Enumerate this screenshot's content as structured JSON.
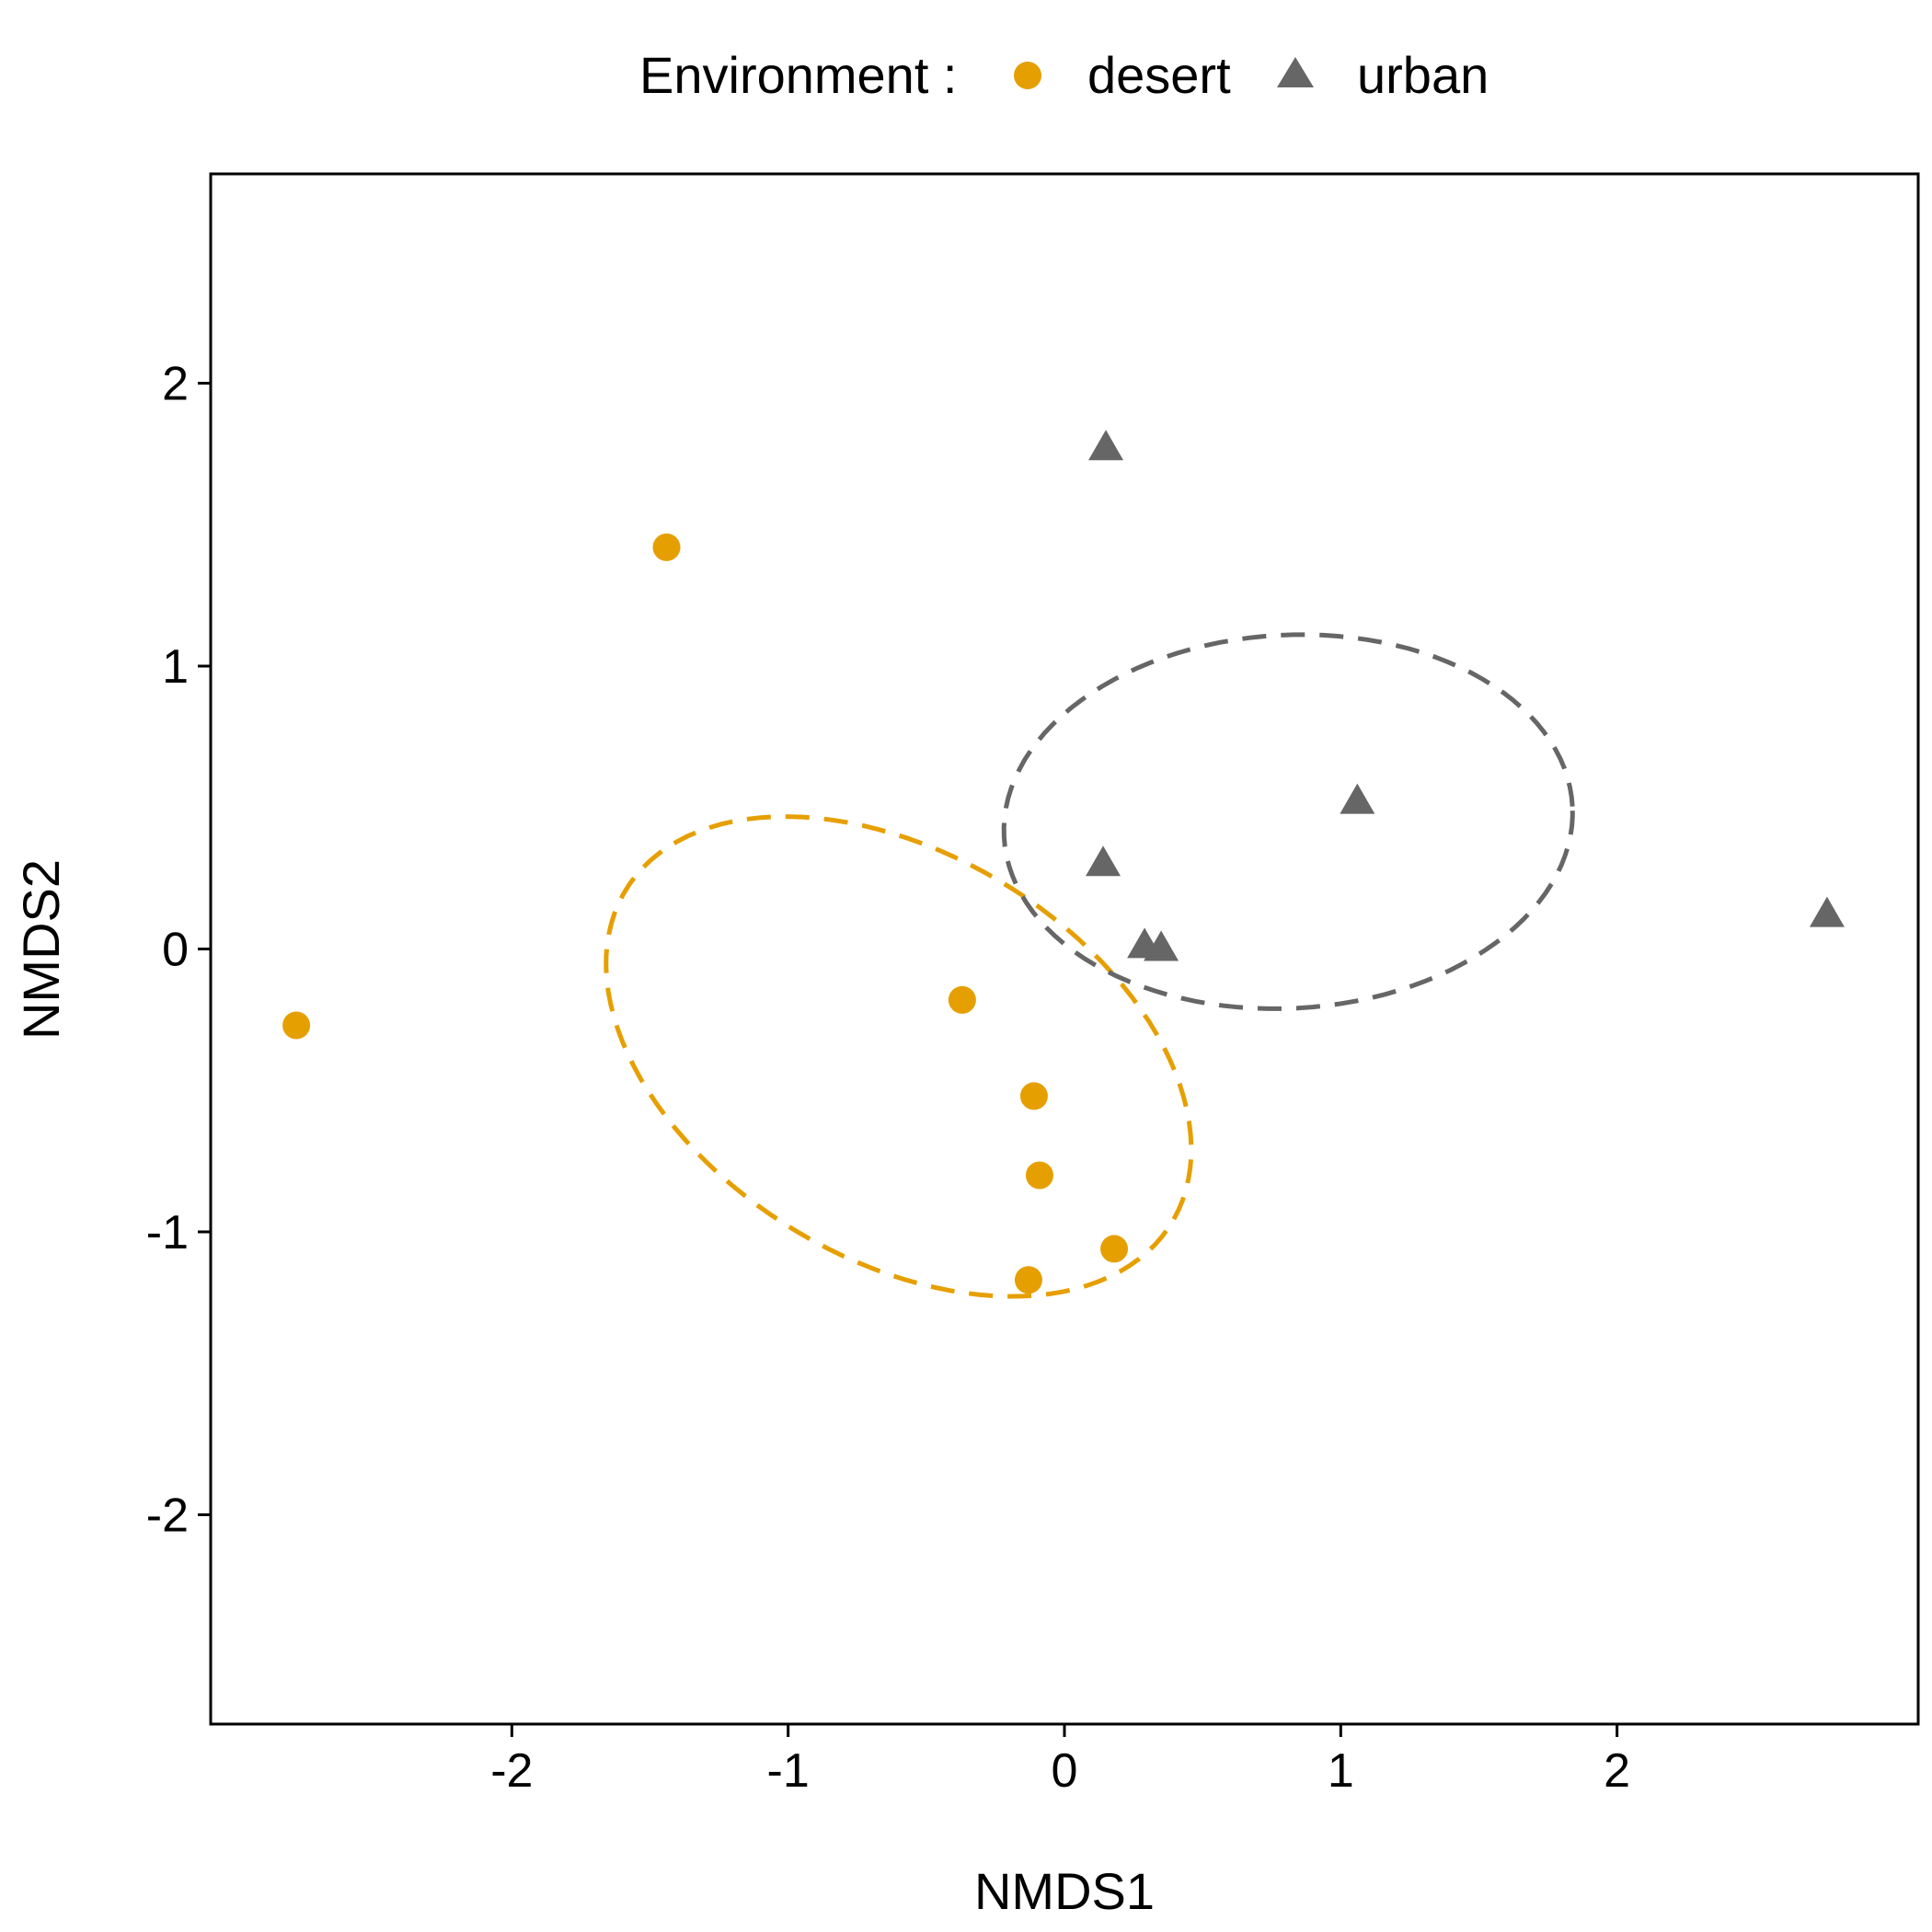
{
  "chart_data": {
    "type": "scatter",
    "xlabel": "NMDS1",
    "ylabel": "NMDS2",
    "xlim": [
      -3.09,
      3.09
    ],
    "ylim": [
      -2.74,
      2.74
    ],
    "x_ticks": [
      -2,
      -1,
      0,
      1,
      2
    ],
    "y_ticks": [
      -2,
      -1,
      0,
      1,
      2
    ],
    "x_tick_labels": [
      "-2",
      "-1",
      "0",
      "1",
      "2"
    ],
    "y_tick_labels": [
      "-2",
      "-1",
      "0",
      "1",
      "2"
    ],
    "grid": false,
    "legend": {
      "title": "Environment :",
      "position": "top",
      "entries": [
        {
          "label": "desert",
          "shape": "circle",
          "color": "#E69F00"
        },
        {
          "label": "urban",
          "shape": "triangle",
          "color": "#666666"
        }
      ]
    },
    "series": [
      {
        "name": "desert",
        "shape": "circle",
        "color": "#E69F00",
        "points": [
          {
            "x": -2.78,
            "y": -0.27
          },
          {
            "x": -1.44,
            "y": 1.42
          },
          {
            "x": -0.37,
            "y": -0.18
          },
          {
            "x": -0.11,
            "y": -0.52
          },
          {
            "x": -0.09,
            "y": -0.8
          },
          {
            "x": 0.18,
            "y": -1.06
          },
          {
            "x": -0.13,
            "y": -1.17
          }
        ],
        "ellipse": {
          "cx": -0.6,
          "cy": -0.38,
          "rx": 1.15,
          "ry": 0.72,
          "angle_deg": -30,
          "dashed": true
        }
      },
      {
        "name": "urban",
        "shape": "triangle",
        "color": "#666666",
        "points": [
          {
            "x": 0.15,
            "y": 1.77
          },
          {
            "x": 0.14,
            "y": 0.3
          },
          {
            "x": 0.29,
            "y": 0.01
          },
          {
            "x": 0.35,
            "y": 0.0
          },
          {
            "x": 1.06,
            "y": 0.52
          },
          {
            "x": 2.76,
            "y": 0.12
          }
        ],
        "ellipse": {
          "cx": 0.81,
          "cy": 0.45,
          "rx": 1.03,
          "ry": 0.66,
          "angle_deg": 3,
          "dashed": true
        }
      }
    ]
  }
}
